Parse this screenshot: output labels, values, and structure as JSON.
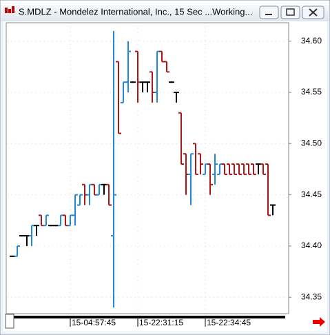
{
  "window": {
    "title": "S.MDLZ - Mondelez International, Inc., 15 Sec ...Working..."
  },
  "chart_data": {
    "type": "ohlc",
    "categories": [
      null,
      null,
      null,
      null,
      null,
      null,
      null,
      null,
      null,
      null,
      null,
      null,
      "15-04:57:45",
      null,
      null,
      null,
      null,
      null,
      null,
      null,
      null,
      null,
      null,
      null,
      null,
      null,
      "15-22:31:15",
      null,
      null,
      null,
      null,
      null,
      null,
      null,
      null,
      null,
      null,
      null,
      null,
      null,
      "15-22:34:45",
      null,
      null,
      null,
      null,
      null,
      null,
      null,
      null,
      null,
      null,
      null,
      null,
      null,
      null
    ],
    "open": [
      34.39,
      34.39,
      34.41,
      34.41,
      34.41,
      34.42,
      34.43,
      34.42,
      34.42,
      34.42,
      34.42,
      34.43,
      34.42,
      34.43,
      34.44,
      34.46,
      34.45,
      34.46,
      34.45,
      34.46,
      34.46,
      34.41,
      34.58,
      34.54,
      34.56,
      34.56,
      34.59,
      34.56,
      34.56,
      34.57,
      34.55,
      34.59,
      34.58,
      34.56,
      34.55,
      34.53,
      34.49,
      34.47,
      34.5,
      34.49,
      34.47,
      34.48,
      34.47,
      34.47,
      34.48,
      34.48,
      34.48,
      34.48,
      34.48,
      34.48,
      34.48,
      34.48,
      34.48,
      34.48,
      34.44
    ],
    "high": [
      34.39,
      34.4,
      34.41,
      34.41,
      34.42,
      34.42,
      34.43,
      34.43,
      34.42,
      34.42,
      34.43,
      34.43,
      34.43,
      34.45,
      34.45,
      34.46,
      34.46,
      34.46,
      34.46,
      34.46,
      34.46,
      34.61,
      34.58,
      34.56,
      34.6,
      34.56,
      34.59,
      34.56,
      34.56,
      34.57,
      34.59,
      34.59,
      34.58,
      34.56,
      34.55,
      34.53,
      34.49,
      34.49,
      34.5,
      34.49,
      34.48,
      34.48,
      34.49,
      34.48,
      34.48,
      34.48,
      34.48,
      34.48,
      34.48,
      34.48,
      34.48,
      34.48,
      34.48,
      34.48,
      34.44
    ],
    "low": [
      34.39,
      34.39,
      34.41,
      34.4,
      34.4,
      34.41,
      34.42,
      34.42,
      34.42,
      34.42,
      34.42,
      34.42,
      34.42,
      34.42,
      34.44,
      34.44,
      34.44,
      34.45,
      34.45,
      34.45,
      34.44,
      34.34,
      34.51,
      34.54,
      34.55,
      34.56,
      34.54,
      34.55,
      34.55,
      34.54,
      34.54,
      34.58,
      34.57,
      34.56,
      34.54,
      34.48,
      34.45,
      34.44,
      34.47,
      34.47,
      34.47,
      34.45,
      34.46,
      34.47,
      34.47,
      34.47,
      34.47,
      34.47,
      34.47,
      34.47,
      34.47,
      34.47,
      34.47,
      34.43,
      34.43
    ],
    "close": [
      34.39,
      34.4,
      34.41,
      34.41,
      34.42,
      34.42,
      34.42,
      34.43,
      34.42,
      34.42,
      34.43,
      34.42,
      34.43,
      34.45,
      34.45,
      34.45,
      34.46,
      34.45,
      34.46,
      34.46,
      34.44,
      34.45,
      34.51,
      34.56,
      34.59,
      34.56,
      34.56,
      34.56,
      34.56,
      34.55,
      34.59,
      34.58,
      34.57,
      34.56,
      34.55,
      34.48,
      34.47,
      34.49,
      34.47,
      34.48,
      34.48,
      34.46,
      34.48,
      34.48,
      34.47,
      34.47,
      34.47,
      34.47,
      34.47,
      34.47,
      34.47,
      34.48,
      34.47,
      34.43,
      34.44
    ],
    "up_color": "#1f88e0",
    "down_color": "#b01414",
    "flat_color": "#000000",
    "ylim": [
      34.334,
      34.618
    ],
    "yticks": [
      34.35,
      {
        "value": 34.4,
        "label": "34.40"
      },
      34.45,
      {
        "value": 34.5,
        "label": "34.50"
      },
      34.55,
      {
        "value": 34.6,
        "label": "34.60"
      }
    ],
    "grid": true
  }
}
